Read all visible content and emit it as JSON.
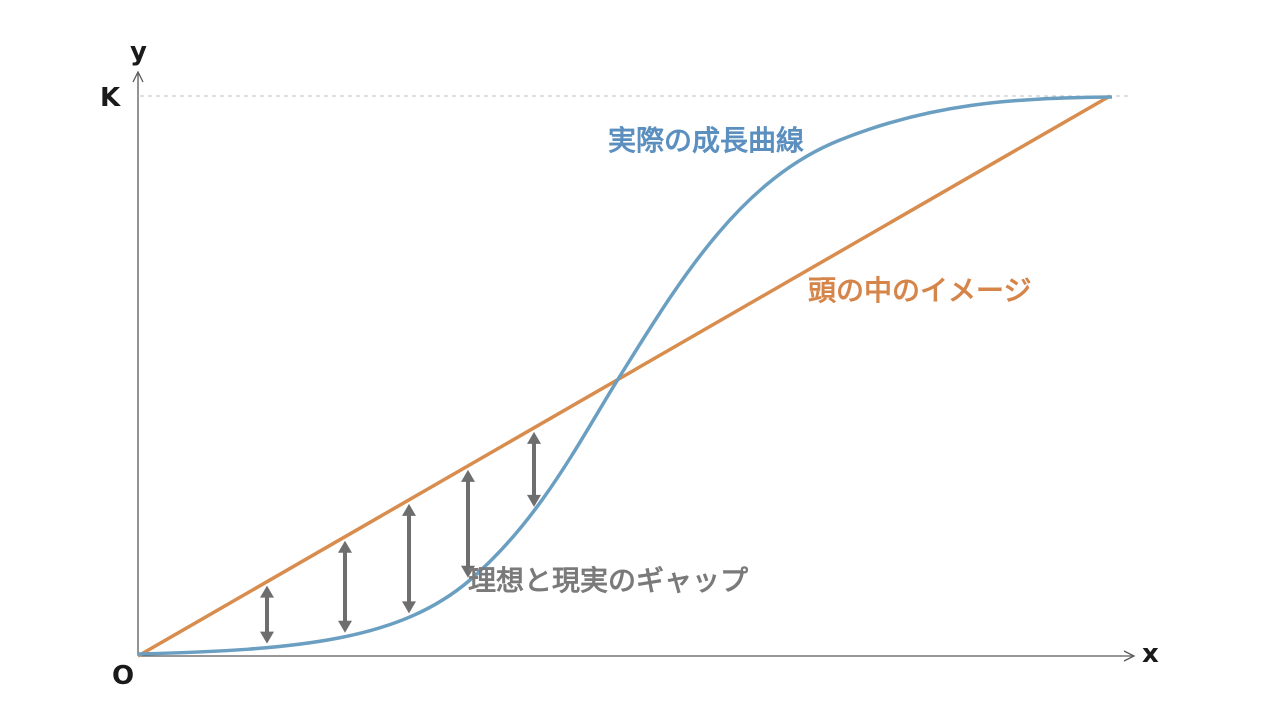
{
  "axes": {
    "y_letter": "y",
    "x_letter": "x",
    "k_letter": "K",
    "origin_letter": "O"
  },
  "labels": {
    "actual_curve": "実際の成長曲線",
    "mental_image": "頭の中のイメージ",
    "gap": "理想と現実のギャップ"
  },
  "colors": {
    "actual_curve": "#6a9fc2",
    "mental_image": "#d88d4e",
    "gap_arrows": "#6e6e6e",
    "axes": "#595959"
  },
  "gap_arrow_count": 5
}
